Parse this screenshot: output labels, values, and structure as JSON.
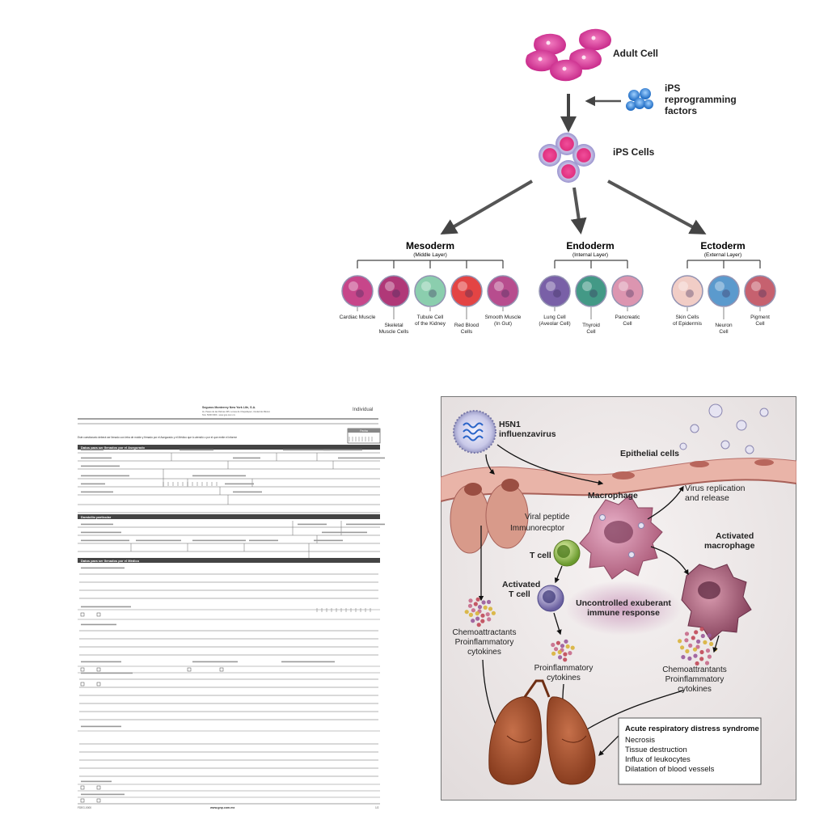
{
  "ips": {
    "adult_cell": "Adult Cell",
    "factors": [
      "iPS",
      "reprogramming",
      "factors"
    ],
    "ips_cells": "iPS Cells",
    "layers": [
      {
        "name": "Mesoderm",
        "sub": "(Middle Layer)"
      },
      {
        "name": "Endoderm",
        "sub": "(Internal Layer)"
      },
      {
        "name": "Ectoderm",
        "sub": "(External Layer)"
      }
    ],
    "cells": [
      {
        "lines": [
          "Cardiac Muscle"
        ],
        "color": "#c2327e"
      },
      {
        "lines": [
          "Skeletal",
          "Muscle Cells"
        ],
        "color": "#a8236a"
      },
      {
        "lines": [
          "Tubule Cell",
          "of the Kidney"
        ],
        "color": "#7fc9a6"
      },
      {
        "lines": [
          "Red Blood",
          "Cells"
        ],
        "color": "#e03030"
      },
      {
        "lines": [
          "Smooth Muscle",
          "(In Gut)"
        ],
        "color": "#b03a82"
      },
      {
        "lines": [
          "Lung Cell",
          "(Aveolar Cell)"
        ],
        "color": "#6b4f9e"
      },
      {
        "lines": [
          "Thyroid",
          "Cell"
        ],
        "color": "#2f8f7a"
      },
      {
        "lines": [
          "Pancreatic",
          "Cell"
        ],
        "color": "#d98aa8"
      },
      {
        "lines": [
          "Skin Cells",
          "of Epidermis"
        ],
        "color": "#f0c8c0"
      },
      {
        "lines": [
          "Neuron",
          "Cell"
        ],
        "color": "#4a90c8"
      },
      {
        "lines": [
          "Pigment",
          "Cell"
        ],
        "color": "#c05060"
      }
    ]
  },
  "form": {
    "header_company": "Seguros Monterrey New York Life, S.A.",
    "header_address": "Av. Paseo de las Palmas 405, Lomas de Chapultepec, Ciudad de México",
    "header_phone": "Tels. 5000 0000 - www.gnp.com.mx",
    "individual": "Individual",
    "instructions": "Este cuestionario deberá ser llenado con letra de molde y firmado por el Asegurado y el Médico que lo atendió o por el que emite el informe",
    "fecha": "Fecha",
    "section1": "Datos para ser llenados por el Asegurado",
    "section2": "Domicilio particular",
    "section3": "Datos para ser llenados por el Médico",
    "yes": "Sí",
    "no": "No",
    "footer_code": "FDEG-0000",
    "footer_url": "www.gnp.com.mx",
    "footer_page": "1/2"
  },
  "flu": {
    "virus": [
      "H5N1",
      "influenzavirus"
    ],
    "epithelial": "Epithelial cells",
    "macrophage": "Macrophage",
    "replication": [
      "Virus replication",
      "and release"
    ],
    "viral_peptide": "Viral peptide",
    "immunoreceptor": "Immunorecptor",
    "activated_macrophage": [
      "Activated",
      "macrophage"
    ],
    "t_cell": "T cell",
    "activated_t": [
      "Activated",
      "T cell"
    ],
    "uncontrolled": [
      "Uncontrolled exuberant",
      "immune response"
    ],
    "chemo_left": [
      "Chemoattractants",
      "Proinflammatory",
      "cytokines"
    ],
    "proinflam": [
      "Proinflammatory",
      "cytokines"
    ],
    "chemo_right": [
      "Chemoattrantants",
      "Proinflammatory",
      "cytokines"
    ],
    "ards_title": "Acute respiratory distress syndrome",
    "ards_items": [
      "Necrosis",
      "Tissue destruction",
      "Influx of leukocytes",
      "Dilatation of blood vessels"
    ]
  },
  "colors": {
    "cell_magenta": "#d43c9a",
    "ips_blue": "#3a7fd0",
    "panel_bg": "#eae6e6",
    "membrane": "#b8706a",
    "lung": "#a8522e"
  }
}
